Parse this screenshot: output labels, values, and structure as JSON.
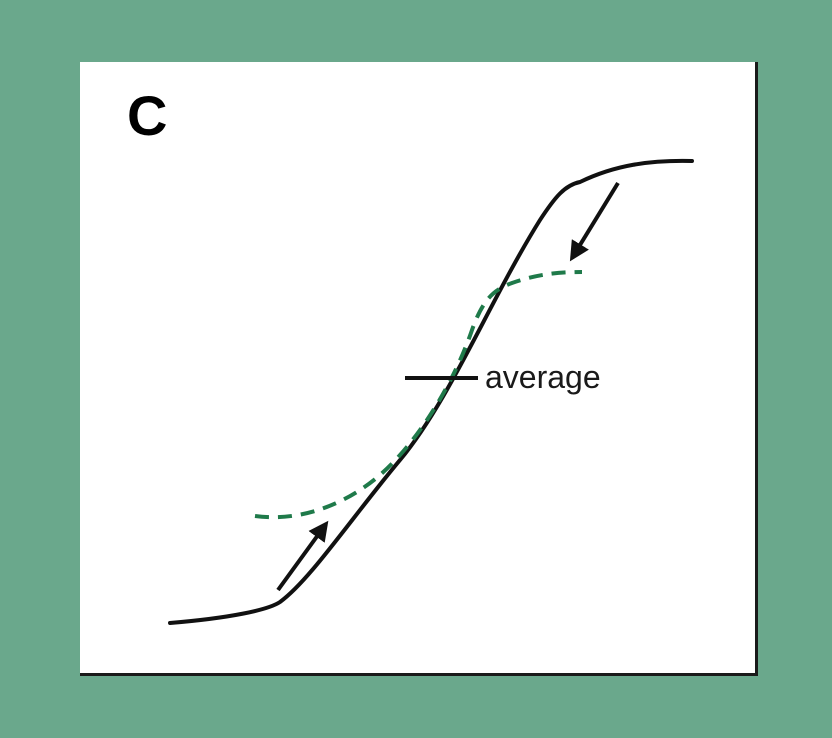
{
  "panel": {
    "letter": "C"
  },
  "labels": {
    "average": "average"
  },
  "colors": {
    "background": "#6aa88c",
    "panel": "#ffffff",
    "solid_curve": "#111111",
    "dashed_curve": "#1f7a4a",
    "arrows": "#111111"
  }
}
